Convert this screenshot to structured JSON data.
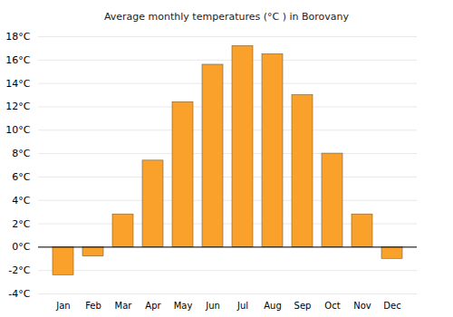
{
  "chart_data": {
    "type": "bar",
    "title": "Average monthly temperatures (°C ) in Borovany",
    "categories": [
      "Jan",
      "Feb",
      "Mar",
      "Apr",
      "May",
      "Jun",
      "Jul",
      "Aug",
      "Sep",
      "Oct",
      "Nov",
      "Dec"
    ],
    "values": [
      -2.4,
      -0.8,
      2.8,
      7.4,
      12.4,
      15.6,
      17.2,
      16.5,
      13.0,
      8.0,
      2.8,
      -1.0
    ],
    "color": "#f9a12b",
    "ylim": [
      -4,
      18
    ],
    "yticks": [
      {
        "value": -4,
        "label": "-4°C"
      },
      {
        "value": -2,
        "label": "-2°C"
      },
      {
        "value": 0,
        "label": "0°C"
      },
      {
        "value": 2,
        "label": "2°C"
      },
      {
        "value": 4,
        "label": "4°C"
      },
      {
        "value": 6,
        "label": "6°C"
      },
      {
        "value": 8,
        "label": "8°C"
      },
      {
        "value": 10,
        "label": "10°C"
      },
      {
        "value": 12,
        "label": "12°C"
      },
      {
        "value": 14,
        "label": "14°C"
      },
      {
        "value": 16,
        "label": "16°C"
      },
      {
        "value": 18,
        "label": "18°C"
      }
    ],
    "grid": true
  }
}
